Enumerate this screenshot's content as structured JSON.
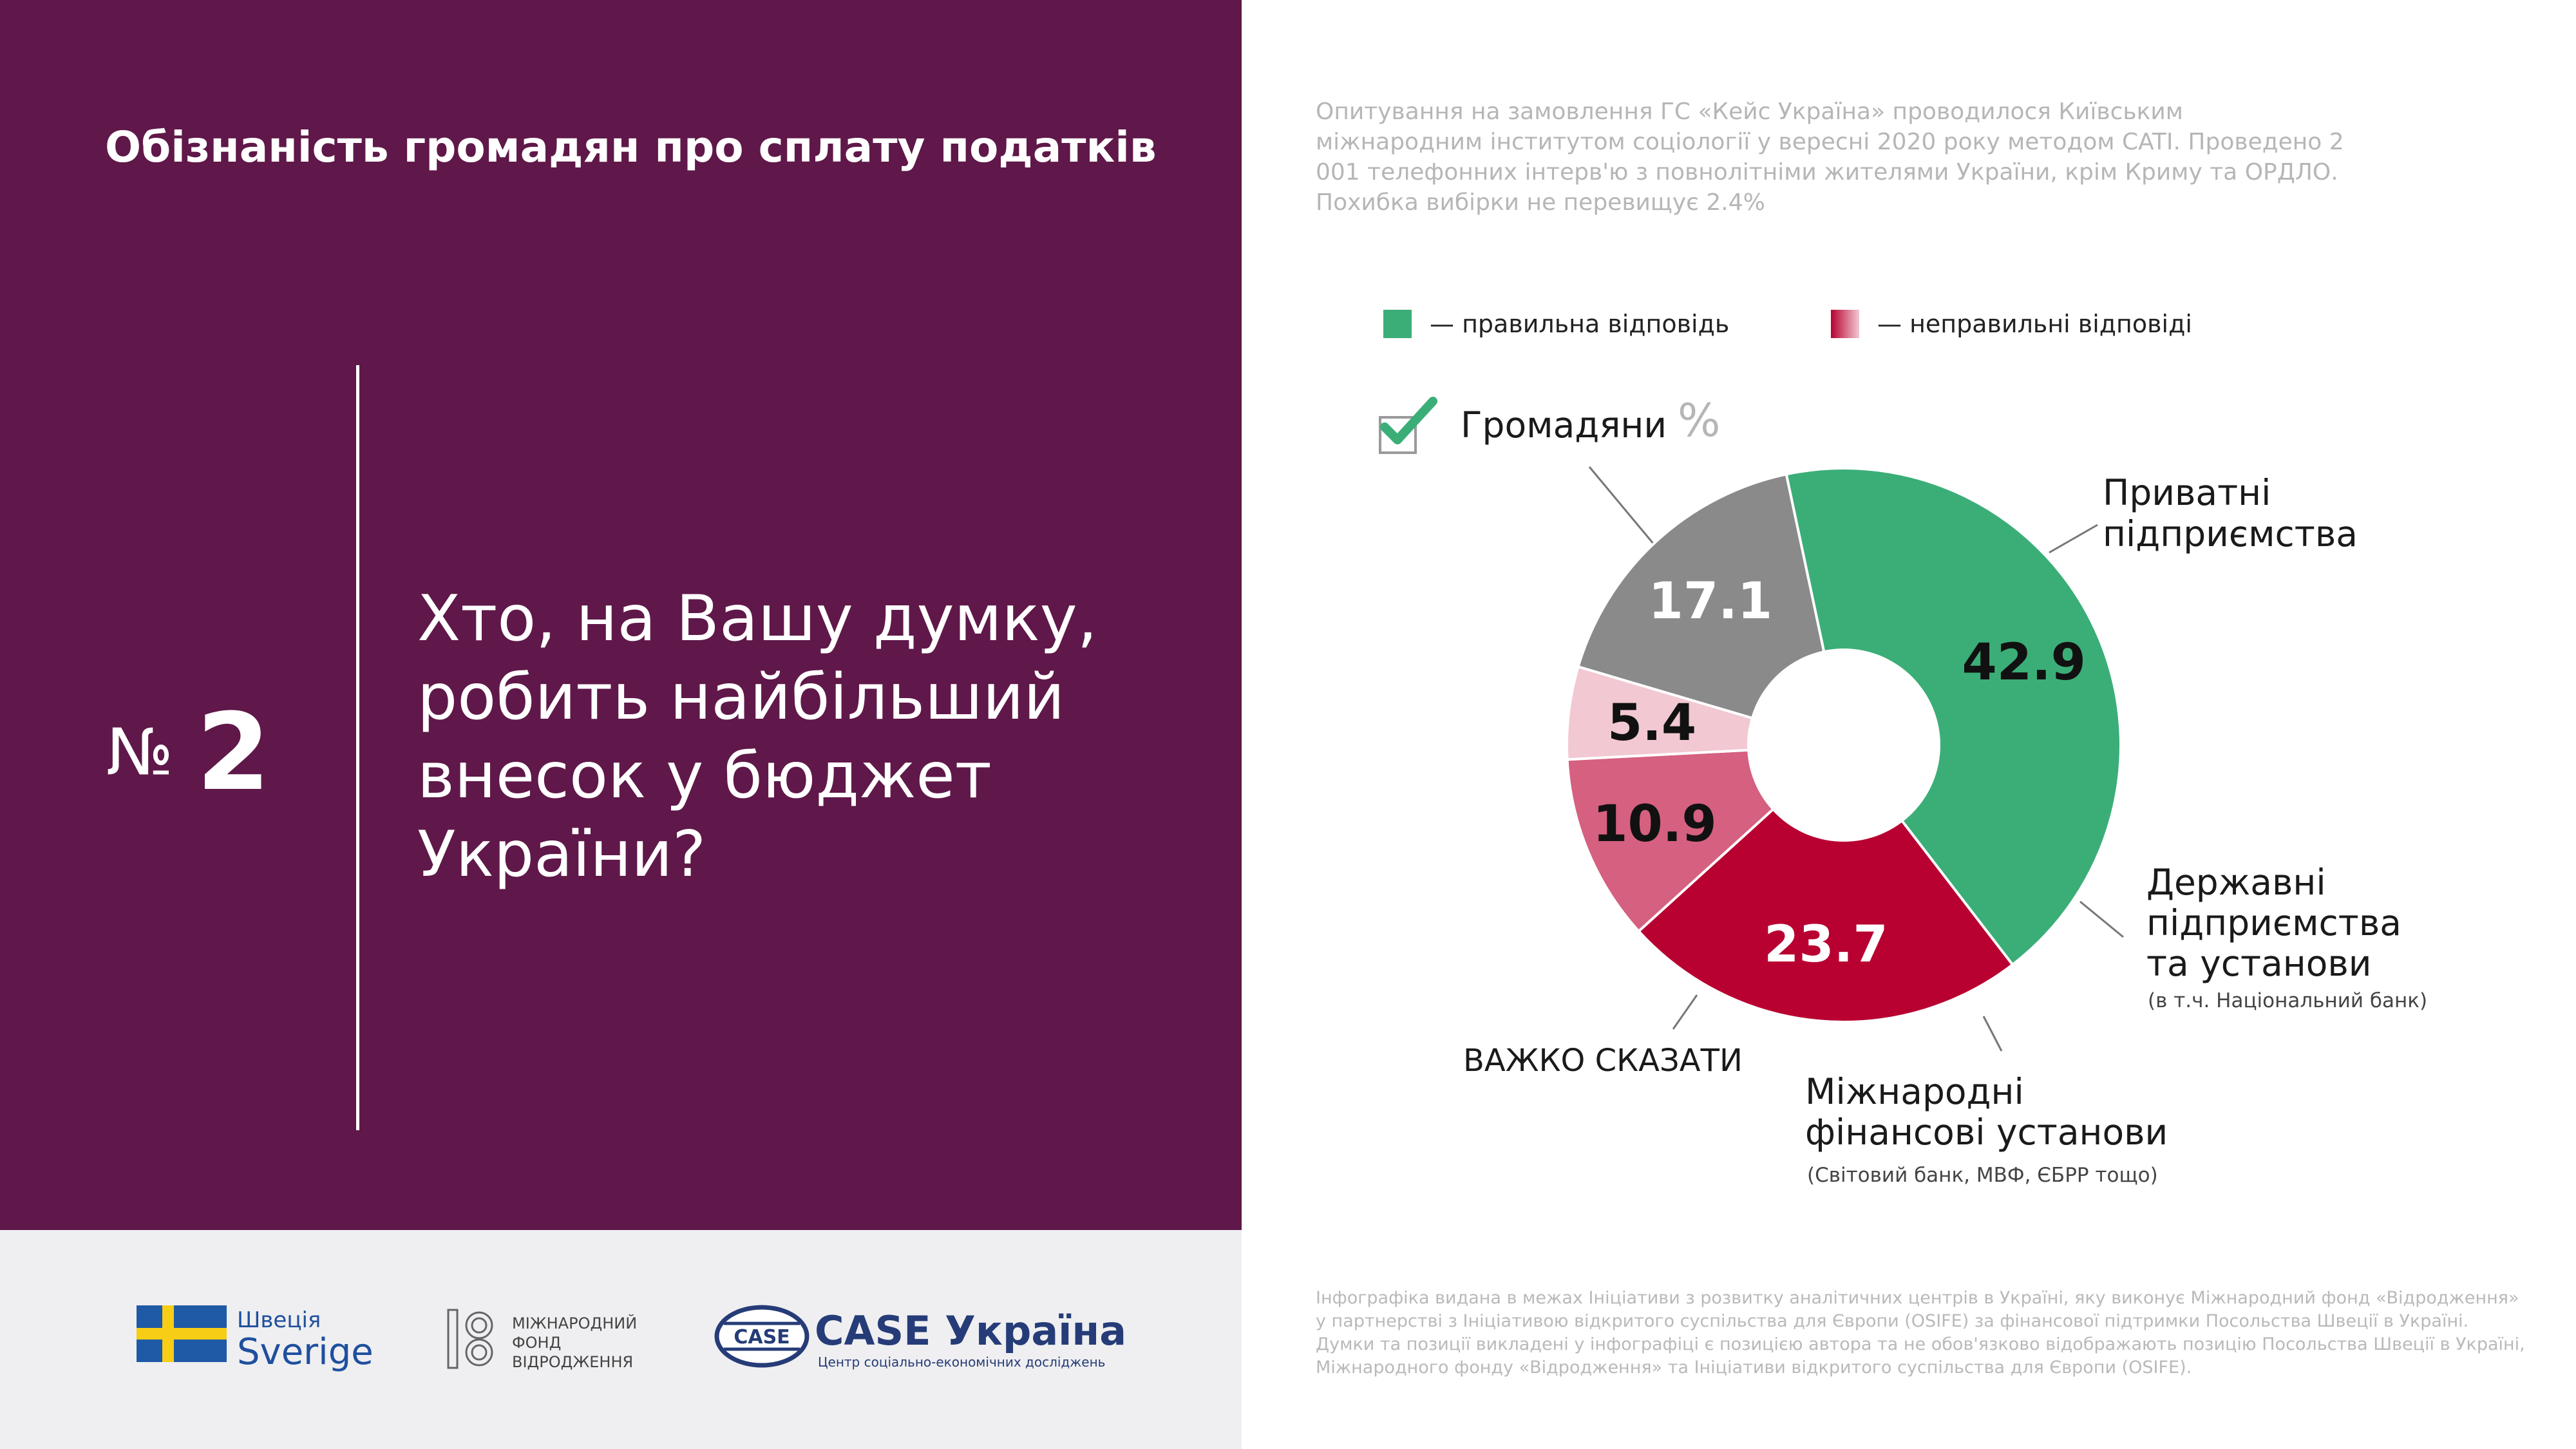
{
  "header": {
    "title": "Обізнаність громадян про сплату податків",
    "question_prefix": "№",
    "question_number": "2",
    "question": "Хто, на Вашу думку, робить найбільший внесок у бюджет України?"
  },
  "source_note": "Опитування на замовлення ГС «Кейс Україна» проводилося Київським міжнародним інститутом соціології у вересні 2020 року методом CATI. Проведено 2 001 телефонних інтерв'ю з повнолітніми жителями України, крім Криму та ОРДЛО. Похибка вибірки не перевищує 2.4%",
  "legend": {
    "correct": "— правильна відповідь",
    "incorrect": "— неправильні відповіді"
  },
  "colors": {
    "panel": "#5f1849",
    "correct": "#3bae78",
    "private": "#b80031",
    "state": "#d5607f",
    "intl": "#f2c8d2",
    "hard": "#8a8a8a"
  },
  "unit": "%",
  "chart_data": {
    "type": "pie",
    "donut": true,
    "unit": "%",
    "slices": [
      {
        "key": "citizens",
        "label": "Громадяни",
        "value": 42.9,
        "value_label": "42.9",
        "color": "#3bae78",
        "correct": true
      },
      {
        "key": "private",
        "label": "Приватні підприємства",
        "value": 23.7,
        "value_label": "23.7",
        "color": "#b80031"
      },
      {
        "key": "state",
        "label": "Державні підприємства та установи",
        "note": "(в т.ч. Національний банк)",
        "value": 10.9,
        "value_label": "10.9",
        "color": "#d5607f"
      },
      {
        "key": "intl",
        "label": "Міжнародні фінансові установи",
        "note": "(Світовий банк, МВФ, ЄБРР тощо)",
        "value": 5.4,
        "value_label": "5.4",
        "color": "#f2c8d2"
      },
      {
        "key": "hard",
        "label": "ВАЖКО СКАЗАТИ",
        "value": 17.1,
        "value_label": "17.1",
        "color": "#8a8a8a"
      }
    ]
  },
  "labels": {
    "citizens": "Громадяни",
    "private_1": "Приватні",
    "private_2": "підприємства",
    "state_1": "Державні",
    "state_2": "підприємства",
    "state_3": "та установи",
    "state_note": "(в т.ч. Національний банк)",
    "intl_1": "Міжнародні",
    "intl_2": "фінансові установи",
    "intl_note": "(Світовий банк, МВФ, ЄБРР тощо)",
    "hard": "ВАЖКО СКАЗАТИ"
  },
  "footer": {
    "sverige_small": "Швеція",
    "sverige_big": "Sverige",
    "irf_1": "МІЖНАРОДНИЙ",
    "irf_2": "ФОНД",
    "irf_3": "ВІДРОДЖЕННЯ",
    "case_badge": "CASE",
    "case_title": "CASE Україна",
    "case_subtitle": "Центр соціально-економічних досліджень",
    "note": "Інфографіка видана в межах Ініціативи з розвитку аналітичних центрів в Україні, яку виконує Міжнародний фонд «Відродження» у партнерстві з Ініціативою відкритого суспільства для Європи (OSIFE) за фінансової підтримки Посольства Швеції в Україні. Думки та позиції викладені у інфографіці є позицією автора та не обов'язково відображають позицію Посольства Швеції в Україні, Міжнародного фонду «Відродження» та Ініціативи відкритого суспільства для Європи (OSIFE)."
  }
}
